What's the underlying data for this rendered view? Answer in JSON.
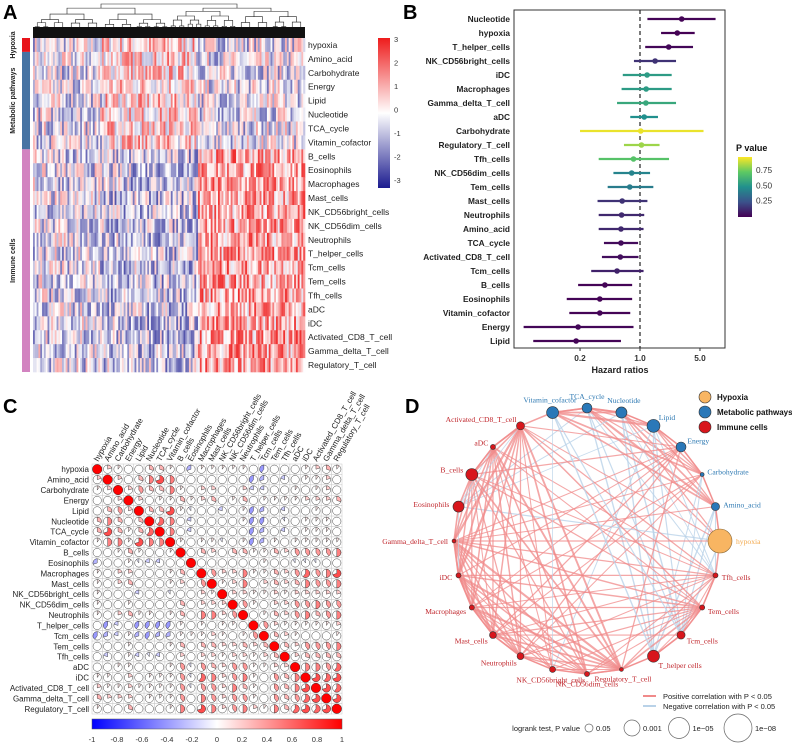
{
  "panels": {
    "a": "A",
    "b": "B",
    "c": "C",
    "d": "D"
  },
  "chart_data": [
    {
      "type": "heatmap",
      "panel": "A",
      "rows": [
        "hypoxia",
        "Amino_acid",
        "Carbohydrate",
        "Energy",
        "Lipid",
        "Nucleotide",
        "TCA_cycle",
        "Vitamin_cofactor",
        "B_cells",
        "Eosinophils",
        "Macrophages",
        "Mast_cells",
        "NK_CD56bright_cells",
        "NK_CD56dim_cells",
        "Neutrophils",
        "T_helper_cells",
        "Tcm_cells",
        "Tem_cells",
        "Tfh_cells",
        "aDC",
        "iDC",
        "Activated_CD8_T_cell",
        "Gamma_delta_T_cell",
        "Regulatory_T_cell"
      ],
      "row_groups": [
        {
          "name": "Hypoxia",
          "count": 1,
          "color": "#e8141b"
        },
        {
          "name": "Metabolic pathways",
          "count": 7,
          "color": "#4673a3"
        },
        {
          "name": "Immune cells",
          "count": 16,
          "color": "#d283c0"
        }
      ],
      "colorbar": {
        "ticks": [
          "3",
          "2",
          "1",
          "0",
          "-1",
          "-2",
          "-3"
        ],
        "range": [
          -3,
          3
        ],
        "low": "#1b1b8f",
        "mid": "#ffffff",
        "high": "#ee1c1c"
      },
      "dendrogram": true
    },
    {
      "type": "forest",
      "panel": "B",
      "xlabel": "Hazard ratios",
      "xscale": "log",
      "xticks": [
        "0.2",
        "1.0",
        "5.0"
      ],
      "reference_line": 1.0,
      "legend_title": "P value",
      "legend_ticks": [
        "0.75",
        "0.50",
        "0.25"
      ],
      "rows": [
        {
          "label": "Nucleotide",
          "hr": 3.06,
          "lo": 1.22,
          "hi": 7.6,
          "p": 0.01
        },
        {
          "label": "hypoxia",
          "hr": 2.72,
          "lo": 1.76,
          "hi": 4.34,
          "p": 0.001
        },
        {
          "label": "T_helper_cells",
          "hr": 2.16,
          "lo": 1.15,
          "hi": 4.15,
          "p": 0.02
        },
        {
          "label": "NK_CD56bright_cells",
          "hr": 1.5,
          "lo": 0.85,
          "hi": 2.63,
          "p": 0.15
        },
        {
          "label": "iDC",
          "hr": 1.21,
          "lo": 0.63,
          "hi": 2.34,
          "p": 0.55
        },
        {
          "label": "Macrophages",
          "hr": 1.18,
          "lo": 0.61,
          "hi": 2.34,
          "p": 0.55
        },
        {
          "label": "Gamma_delta_T_cell",
          "hr": 1.17,
          "lo": 0.54,
          "hi": 2.63,
          "p": 0.6
        },
        {
          "label": "aDC",
          "hr": 1.12,
          "lo": 0.77,
          "hi": 1.62,
          "p": 0.5
        },
        {
          "label": "Carbohydrate",
          "hr": 1.02,
          "lo": 0.2,
          "hi": 5.5,
          "p": 0.97
        },
        {
          "label": "Regulatory_T_cell",
          "hr": 1.04,
          "lo": 0.65,
          "hi": 1.69,
          "p": 0.85
        },
        {
          "label": "Tfh_cells",
          "hr": 0.84,
          "lo": 0.33,
          "hi": 2.18,
          "p": 0.72
        },
        {
          "label": "NK_CD56dim_cells",
          "hr": 0.8,
          "lo": 0.49,
          "hi": 1.31,
          "p": 0.45
        },
        {
          "label": "Tem_cells",
          "hr": 0.76,
          "lo": 0.42,
          "hi": 1.43,
          "p": 0.42
        },
        {
          "label": "Mast_cells",
          "hr": 0.62,
          "lo": 0.32,
          "hi": 1.22,
          "p": 0.15
        },
        {
          "label": "Neutrophils",
          "hr": 0.61,
          "lo": 0.33,
          "hi": 1.12,
          "p": 0.12
        },
        {
          "label": "Amino_acid",
          "hr": 0.6,
          "lo": 0.33,
          "hi": 1.1,
          "p": 0.12
        },
        {
          "label": "TCA_cycle",
          "hr": 0.6,
          "lo": 0.38,
          "hi": 0.95,
          "p": 0.03
        },
        {
          "label": "Activated_CD8_T_cell",
          "hr": 0.59,
          "lo": 0.36,
          "hi": 0.96,
          "p": 0.04
        },
        {
          "label": "Tcm_cells",
          "hr": 0.54,
          "lo": 0.27,
          "hi": 1.1,
          "p": 0.1
        },
        {
          "label": "B_cells",
          "hr": 0.39,
          "lo": 0.19,
          "hi": 0.81,
          "p": 0.01
        },
        {
          "label": "Eosinophils",
          "hr": 0.34,
          "lo": 0.14,
          "hi": 0.81,
          "p": 0.01
        },
        {
          "label": "Vitamin_cofactor",
          "hr": 0.34,
          "lo": 0.15,
          "hi": 0.77,
          "p": 0.01
        },
        {
          "label": "Energy",
          "hr": 0.19,
          "lo": 0.044,
          "hi": 0.84,
          "p": 0.02
        },
        {
          "label": "Lipid",
          "hr": 0.18,
          "lo": 0.057,
          "hi": 0.6,
          "p": 0.01
        }
      ]
    },
    {
      "type": "correlation_matrix",
      "panel": "C",
      "labels": [
        "hypoxia",
        "Amino_acid",
        "Carbohydrate",
        "Energy",
        "Lipid",
        "Nucleotide",
        "TCA_cycle",
        "Vitamin_cofactor",
        "B_cells",
        "Eosinophils",
        "Macrophages",
        "Mast_cells",
        "NK_CD56bright_cells",
        "NK_CD56dim_cells",
        "Neutrophils",
        "T_helper_cells",
        "Tcm_cells",
        "Tem_cells",
        "Tfh_cells",
        "aDC",
        "iDC",
        "Activated_CD8_T_cell",
        "Gamma_delta_T_cell",
        "Regulatory_T_cell"
      ],
      "upper_triangle": [
        [
          0.2,
          0.1,
          0,
          0,
          0.3,
          0.3,
          0.1,
          0,
          -0.3,
          0.1,
          0.1,
          0.1,
          0.1,
          0.1,
          0,
          -0.4,
          0,
          0,
          0,
          0.1,
          0.2,
          0.3,
          0.1
        ],
        [
          0.2,
          0,
          0.3,
          0.5,
          0.7,
          0.5,
          0,
          0,
          0,
          0,
          0,
          0,
          0,
          -0.4,
          -0.3,
          0,
          -0.2,
          0,
          0.1,
          0.1,
          0.2,
          0
        ],
        [
          0.2,
          0.4,
          0.3,
          0.3,
          0.5,
          0.1,
          0,
          0.2,
          0.2,
          0,
          0,
          0.2,
          -0.2,
          -0.2,
          0,
          0,
          0.1,
          0,
          0.1,
          0.2
        ],
        [
          0.2,
          0,
          0.1,
          0.1,
          0.3,
          0.1,
          0.2,
          0.3,
          0,
          0.1,
          0.3,
          0,
          0.1,
          0.1,
          0.1,
          0.1,
          0.2,
          0.2,
          0.2,
          0.3
        ],
        [
          0.3,
          0.3,
          0.7,
          0.1,
          -0.1,
          0,
          0,
          -0.2,
          0,
          0.1,
          -0.4,
          -0.3,
          0,
          -0.2,
          0,
          0,
          0.1,
          0,
          0
        ],
        [
          0.6,
          0.5,
          0,
          -0.2,
          0,
          0,
          0,
          0,
          0.1,
          -0.4,
          -0.4,
          0,
          -0.1,
          0,
          0.1,
          0.1,
          0.1,
          0
        ],
        [
          0.5,
          0,
          -0.2,
          0,
          0,
          0,
          0,
          0,
          -0.4,
          -0.3,
          0,
          -0.2,
          0,
          0.1,
          0.1,
          0.1,
          0
        ],
        [
          0.1,
          0,
          0.1,
          0.1,
          -0.1,
          0,
          0.1,
          -0.4,
          -0.3,
          0.1,
          0,
          0.1,
          0.1,
          0.1,
          0.1,
          0.1
        ],
        [
          0,
          0.3,
          0.2,
          0,
          0.3,
          0.3,
          0.1,
          0.1,
          0.3,
          0.2,
          0.4,
          0.4,
          0.4,
          0.4,
          0.5
        ],
        [
          0,
          0,
          0,
          0,
          0,
          0,
          0.1,
          0,
          0,
          -0.1,
          -0.1,
          -0.1,
          0,
          0
        ],
        [
          0.4,
          0.2,
          0.2,
          0.5,
          0.1,
          0.1,
          0.3,
          0.2,
          0.4,
          0.6,
          0.4,
          0.5,
          0.7
        ],
        [
          0.1,
          0.2,
          0.5,
          0,
          0.2,
          0.3,
          0.2,
          0.3,
          0.5,
          0.4,
          0.4,
          0.5
        ],
        [
          0.2,
          0.2,
          0.1,
          0.1,
          0.2,
          0.1,
          0.2,
          0.2,
          0.2,
          0.2,
          0.2
        ],
        [
          0.4,
          0.1,
          0,
          0.2,
          0.2,
          0.4,
          0.4,
          0.5,
          0.4,
          0.4
        ],
        [
          0,
          0.1,
          0.3,
          0.2,
          0.4,
          0.5,
          0.3,
          0.4,
          0.5
        ],
        [
          0.4,
          0.2,
          0.1,
          0.1,
          0.1,
          0.1,
          0.1,
          0.2
        ],
        [
          0.3,
          0.2,
          0.1,
          0,
          0,
          0,
          0.1
        ],
        [
          0.3,
          0.2,
          0.4,
          0.4,
          0.4,
          0.5
        ],
        [
          0.2,
          0.3,
          0.3,
          0.3,
          0.3
        ],
        [
          0.5,
          0.5,
          0.4,
          0.6
        ],
        [
          0.7,
          0.6,
          0.7
        ],
        [
          0.7,
          0.6
        ],
        [
          0.7
        ]
      ],
      "colorbar_ticks": [
        "-1",
        "-0.8",
        "-0.6",
        "-0.4",
        "-0.2",
        "0",
        "0.2",
        "0.4",
        "0.6",
        "0.8",
        "1"
      ],
      "range": [
        -1,
        1
      ]
    },
    {
      "type": "network",
      "panel": "D",
      "nodes": [
        {
          "label": "TCA_cycle",
          "group": "metabolic",
          "p": 0.0005
        },
        {
          "label": "Nucleotide",
          "group": "metabolic",
          "p": 0.0002
        },
        {
          "label": "Lipid",
          "group": "metabolic",
          "p": 5e-05
        },
        {
          "label": "Energy",
          "group": "metabolic",
          "p": 0.0005
        },
        {
          "label": "Carbohydrate",
          "group": "metabolic",
          "p": 0.05
        },
        {
          "label": "Amino_acid",
          "group": "metabolic",
          "p": 0.002
        },
        {
          "label": "hypoxia",
          "group": "hypoxia",
          "p": 1e-08
        },
        {
          "label": "Tfh_cells",
          "group": "immune",
          "p": 0.02
        },
        {
          "label": "Tem_cells",
          "group": "immune",
          "p": 0.02
        },
        {
          "label": "Tcm_cells",
          "group": "immune",
          "p": 0.002
        },
        {
          "label": "T_helper cells",
          "group": "immune",
          "p": 0.0001
        },
        {
          "label": "Regulatory_T_cell",
          "group": "immune",
          "p": 0.05
        },
        {
          "label": "NK_CD56dim_cells",
          "group": "immune",
          "p": 0.02
        },
        {
          "label": "NK_CD56bright_cells",
          "group": "immune",
          "p": 0.01
        },
        {
          "label": "Neutrophils",
          "group": "immune",
          "p": 0.005
        },
        {
          "label": "Mast_cells",
          "group": "immune",
          "p": 0.005
        },
        {
          "label": "Macrophages",
          "group": "immune",
          "p": 0.02
        },
        {
          "label": "iDC",
          "group": "immune",
          "p": 0.02
        },
        {
          "label": "Gamma_delta_T_cell",
          "group": "immune",
          "p": 0.05
        },
        {
          "label": "Eosinophils",
          "group": "immune",
          "p": 0.0002
        },
        {
          "label": "B_cells",
          "group": "immune",
          "p": 0.0001
        },
        {
          "label": "aDC",
          "group": "immune",
          "p": 0.02
        },
        {
          "label": "Activated_CD8_T_cell",
          "group": "immune",
          "p": 0.002
        },
        {
          "label": "Vitamin_cofactor",
          "group": "metabolic",
          "p": 0.0001
        }
      ],
      "legend": {
        "groups": [
          {
            "key": "hypoxia",
            "label": "Hypoxia",
            "color": "#f8b562"
          },
          {
            "key": "metabolic",
            "label": "Metabolic pathways",
            "color": "#2a78b8"
          },
          {
            "key": "immune",
            "label": "Immune cells",
            "color": "#d8161c"
          }
        ],
        "edges": [
          {
            "label": "Positive correlation with P < 0.05",
            "color": "#f08a8a"
          },
          {
            "label": "Negative correlation with P < 0.05",
            "color": "#b9d2e8"
          }
        ],
        "size_title": "logrank test, P value",
        "size_values": [
          "0.05",
          "0.001",
          "1e−05",
          "1e−08"
        ]
      }
    }
  ]
}
